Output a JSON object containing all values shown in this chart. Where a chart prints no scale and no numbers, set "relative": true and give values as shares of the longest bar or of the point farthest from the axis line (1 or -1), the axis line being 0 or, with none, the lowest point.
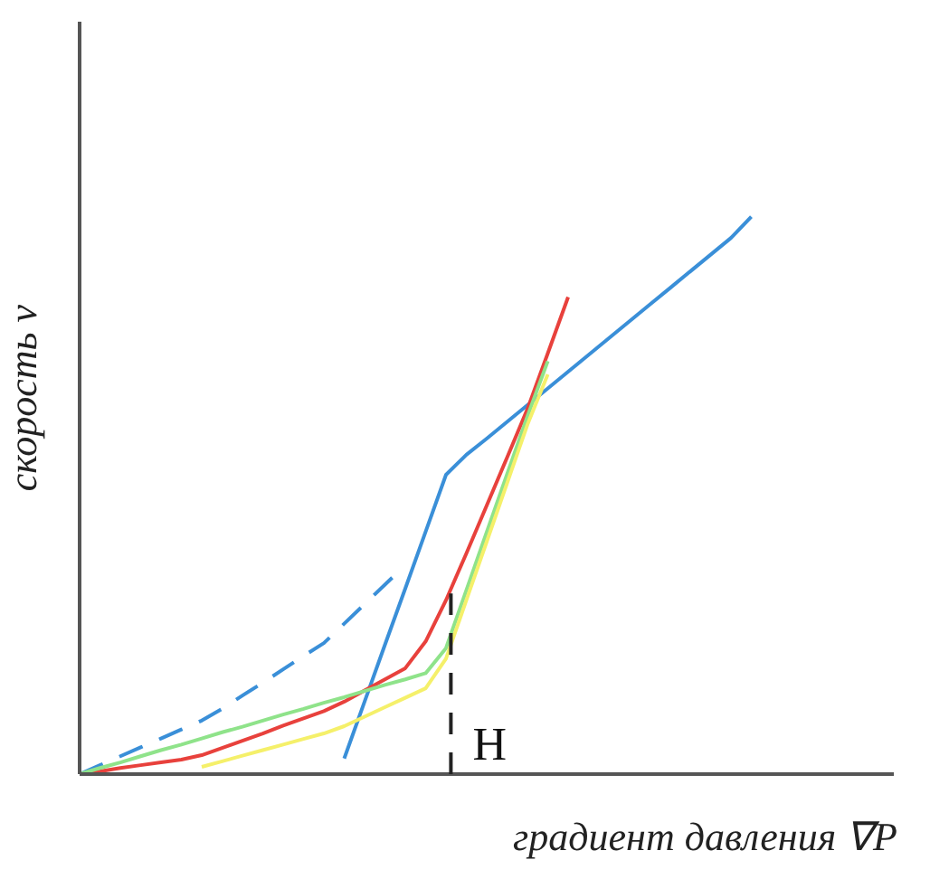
{
  "chart_data": {
    "type": "line",
    "relative": true,
    "xlabel": "градиент давления ∇P",
    "ylabel": "скорость v",
    "marker": "none",
    "line_style": "solid",
    "annotations": [
      "H"
    ],
    "categories": [
      null,
      null,
      null,
      null,
      null,
      null,
      null,
      null,
      null,
      null,
      null,
      null,
      null,
      null,
      null,
      null,
      null,
      null,
      null,
      null,
      null,
      null,
      null,
      null,
      null,
      null,
      null,
      null,
      null,
      null,
      null,
      null,
      null,
      null,
      null,
      null,
      null,
      null,
      null,
      null,
      null
    ],
    "series": [
      {
        "color": "#3a8fd8",
        "values": [
          null,
          null,
          null,
          null,
          null,
          null,
          null,
          null,
          null,
          null,
          null,
          null,
          null,
          0.028,
          0.13,
          0.232,
          0.333,
          0.435,
          0.537,
          0.573,
          0.602,
          0.632,
          0.662,
          0.692,
          0.722,
          0.752,
          0.782,
          0.812,
          0.842,
          0.872,
          0.902,
          0.932,
          0.962,
          1,
          null,
          null,
          null,
          null,
          null,
          null,
          null
        ]
      },
      {
        "color": "#3a8fd8",
        "line_style": "dashed",
        "values": [
          0,
          0.016,
          0.032,
          0.048,
          0.064,
          0.08,
          0.096,
          0.117,
          0.141,
          0.164,
          0.188,
          0.212,
          0.235,
          0.27,
          0.305,
          0.34,
          0.375,
          null,
          null,
          null,
          null,
          null,
          null,
          null,
          null,
          null,
          null,
          null,
          null,
          null,
          null,
          null,
          null,
          null,
          null,
          null,
          null,
          null,
          null,
          null,
          null
        ]
      },
      {
        "color": "#e8413c",
        "values": [
          0,
          0.005,
          0.011,
          0.016,
          0.021,
          0.026,
          0.034,
          0.047,
          0.06,
          0.073,
          0.087,
          0.1,
          0.113,
          0.13,
          0.15,
          0.17,
          0.19,
          0.238,
          0.312,
          0.396,
          0.482,
          0.568,
          0.655,
          0.755,
          0.856,
          null,
          null,
          null,
          null,
          null,
          null,
          null,
          null,
          null,
          null,
          null,
          null,
          null,
          null,
          null,
          null
        ]
      },
      {
        "color": "#8fe38a",
        "values": [
          0,
          0.011,
          0.021,
          0.032,
          0.043,
          0.053,
          0.064,
          0.075,
          0.085,
          0.096,
          0.107,
          0.117,
          0.128,
          0.138,
          0.149,
          0.16,
          0.17,
          0.181,
          0.226,
          0.33,
          0.434,
          0.538,
          0.642,
          0.741,
          null,
          null,
          null,
          null,
          null,
          null,
          null,
          null,
          null,
          null,
          null,
          null,
          null,
          null,
          null,
          null,
          null
        ]
      },
      {
        "color": "#f5f06a",
        "values": [
          null,
          null,
          null,
          null,
          null,
          null,
          0.013,
          0.023,
          0.033,
          0.043,
          0.053,
          0.063,
          0.073,
          0.086,
          0.103,
          0.12,
          0.137,
          0.154,
          0.207,
          0.312,
          0.417,
          0.522,
          0.627,
          0.717,
          null,
          null,
          null,
          null,
          null,
          null,
          null,
          null,
          null,
          null,
          null,
          null,
          null,
          null,
          null,
          null,
          null
        ]
      }
    ]
  }
}
